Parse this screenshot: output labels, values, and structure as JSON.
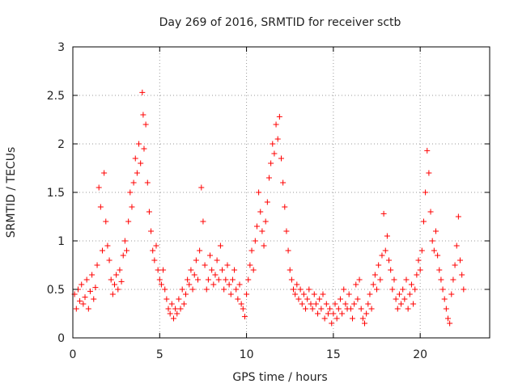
{
  "chart_data": {
    "type": "scatter",
    "title": "Day 269 of 2016, SRMTID for receiver sctb",
    "xlabel": "GPS time / hours",
    "ylabel": "SRMTID / TECUs",
    "xlim": [
      0,
      24
    ],
    "ylim": [
      0,
      3
    ],
    "xticks": [
      0,
      5,
      10,
      15,
      20
    ],
    "xtick_labels": [
      "0",
      "5",
      "10",
      "15",
      "20"
    ],
    "yticks": [
      0,
      0.5,
      1,
      1.5,
      2,
      2.5,
      3
    ],
    "ytick_labels": [
      "0",
      "0.5",
      "1",
      "1.5",
      "2",
      "2.5",
      "3"
    ],
    "grid": true,
    "marker": "+",
    "series": [
      {
        "name": "SRMTID",
        "color": "#ff0000",
        "points": [
          [
            0.1,
            0.45
          ],
          [
            0.2,
            0.3
          ],
          [
            0.3,
            0.5
          ],
          [
            0.4,
            0.38
          ],
          [
            0.5,
            0.55
          ],
          [
            0.6,
            0.35
          ],
          [
            0.7,
            0.42
          ],
          [
            0.8,
            0.6
          ],
          [
            0.9,
            0.3
          ],
          [
            1.0,
            0.48
          ],
          [
            1.1,
            0.65
          ],
          [
            1.2,
            0.4
          ],
          [
            1.3,
            0.52
          ],
          [
            1.4,
            0.75
          ],
          [
            1.5,
            1.55
          ],
          [
            1.6,
            1.35
          ],
          [
            1.7,
            0.9
          ],
          [
            1.8,
            1.7
          ],
          [
            1.9,
            1.2
          ],
          [
            2.0,
            0.95
          ],
          [
            2.1,
            0.8
          ],
          [
            2.2,
            0.6
          ],
          [
            2.3,
            0.45
          ],
          [
            2.4,
            0.55
          ],
          [
            2.5,
            0.65
          ],
          [
            2.6,
            0.5
          ],
          [
            2.7,
            0.7
          ],
          [
            2.8,
            0.58
          ],
          [
            2.9,
            0.85
          ],
          [
            3.0,
            1.0
          ],
          [
            3.1,
            0.9
          ],
          [
            3.2,
            1.2
          ],
          [
            3.3,
            1.5
          ],
          [
            3.4,
            1.35
          ],
          [
            3.5,
            1.6
          ],
          [
            3.6,
            1.85
          ],
          [
            3.7,
            1.7
          ],
          [
            3.8,
            2.0
          ],
          [
            3.9,
            1.8
          ],
          [
            4.0,
            2.53
          ],
          [
            4.05,
            2.3
          ],
          [
            4.1,
            1.95
          ],
          [
            4.2,
            2.2
          ],
          [
            4.3,
            1.6
          ],
          [
            4.4,
            1.3
          ],
          [
            4.5,
            1.1
          ],
          [
            4.6,
            0.9
          ],
          [
            4.7,
            0.8
          ],
          [
            4.8,
            0.95
          ],
          [
            4.9,
            0.7
          ],
          [
            5.0,
            0.6
          ],
          [
            5.1,
            0.55
          ],
          [
            5.2,
            0.7
          ],
          [
            5.3,
            0.5
          ],
          [
            5.4,
            0.4
          ],
          [
            5.5,
            0.3
          ],
          [
            5.6,
            0.25
          ],
          [
            5.7,
            0.35
          ],
          [
            5.8,
            0.2
          ],
          [
            5.9,
            0.3
          ],
          [
            6.0,
            0.25
          ],
          [
            6.1,
            0.4
          ],
          [
            6.2,
            0.3
          ],
          [
            6.3,
            0.5
          ],
          [
            6.4,
            0.35
          ],
          [
            6.5,
            0.45
          ],
          [
            6.6,
            0.6
          ],
          [
            6.7,
            0.55
          ],
          [
            6.8,
            0.7
          ],
          [
            6.9,
            0.5
          ],
          [
            7.0,
            0.65
          ],
          [
            7.1,
            0.8
          ],
          [
            7.2,
            0.6
          ],
          [
            7.3,
            0.9
          ],
          [
            7.4,
            1.55
          ],
          [
            7.5,
            1.2
          ],
          [
            7.6,
            0.75
          ],
          [
            7.7,
            0.5
          ],
          [
            7.8,
            0.6
          ],
          [
            7.9,
            0.85
          ],
          [
            8.0,
            0.7
          ],
          [
            8.1,
            0.55
          ],
          [
            8.2,
            0.65
          ],
          [
            8.3,
            0.8
          ],
          [
            8.4,
            0.6
          ],
          [
            8.5,
            0.95
          ],
          [
            8.6,
            0.7
          ],
          [
            8.7,
            0.5
          ],
          [
            8.8,
            0.6
          ],
          [
            8.9,
            0.75
          ],
          [
            9.0,
            0.55
          ],
          [
            9.1,
            0.45
          ],
          [
            9.2,
            0.6
          ],
          [
            9.3,
            0.7
          ],
          [
            9.4,
            0.5
          ],
          [
            9.5,
            0.4
          ],
          [
            9.6,
            0.55
          ],
          [
            9.7,
            0.35
          ],
          [
            9.8,
            0.3
          ],
          [
            9.9,
            0.22
          ],
          [
            10.0,
            0.45
          ],
          [
            10.1,
            0.6
          ],
          [
            10.2,
            0.75
          ],
          [
            10.3,
            0.9
          ],
          [
            10.4,
            0.7
          ],
          [
            10.5,
            1.0
          ],
          [
            10.6,
            1.15
          ],
          [
            10.7,
            1.5
          ],
          [
            10.8,
            1.3
          ],
          [
            10.9,
            1.1
          ],
          [
            11.0,
            0.95
          ],
          [
            11.1,
            1.2
          ],
          [
            11.2,
            1.4
          ],
          [
            11.3,
            1.65
          ],
          [
            11.4,
            1.8
          ],
          [
            11.5,
            2.0
          ],
          [
            11.6,
            1.9
          ],
          [
            11.7,
            2.2
          ],
          [
            11.8,
            2.05
          ],
          [
            11.9,
            2.28
          ],
          [
            12.0,
            1.85
          ],
          [
            12.1,
            1.6
          ],
          [
            12.2,
            1.35
          ],
          [
            12.3,
            1.1
          ],
          [
            12.4,
            0.9
          ],
          [
            12.5,
            0.7
          ],
          [
            12.6,
            0.6
          ],
          [
            12.7,
            0.5
          ],
          [
            12.8,
            0.45
          ],
          [
            12.9,
            0.55
          ],
          [
            13.0,
            0.4
          ],
          [
            13.1,
            0.5
          ],
          [
            13.2,
            0.35
          ],
          [
            13.3,
            0.45
          ],
          [
            13.4,
            0.3
          ],
          [
            13.5,
            0.4
          ],
          [
            13.6,
            0.5
          ],
          [
            13.7,
            0.35
          ],
          [
            13.8,
            0.3
          ],
          [
            13.9,
            0.45
          ],
          [
            14.0,
            0.35
          ],
          [
            14.1,
            0.25
          ],
          [
            14.2,
            0.4
          ],
          [
            14.3,
            0.3
          ],
          [
            14.4,
            0.45
          ],
          [
            14.5,
            0.2
          ],
          [
            14.6,
            0.35
          ],
          [
            14.7,
            0.25
          ],
          [
            14.8,
            0.3
          ],
          [
            14.9,
            0.15
          ],
          [
            15.0,
            0.25
          ],
          [
            15.1,
            0.35
          ],
          [
            15.2,
            0.2
          ],
          [
            15.3,
            0.3
          ],
          [
            15.4,
            0.4
          ],
          [
            15.5,
            0.25
          ],
          [
            15.6,
            0.5
          ],
          [
            15.7,
            0.35
          ],
          [
            15.8,
            0.3
          ],
          [
            15.9,
            0.45
          ],
          [
            16.0,
            0.3
          ],
          [
            16.1,
            0.2
          ],
          [
            16.2,
            0.35
          ],
          [
            16.3,
            0.55
          ],
          [
            16.4,
            0.4
          ],
          [
            16.5,
            0.6
          ],
          [
            16.6,
            0.3
          ],
          [
            16.7,
            0.2
          ],
          [
            16.8,
            0.15
          ],
          [
            16.9,
            0.25
          ],
          [
            17.0,
            0.35
          ],
          [
            17.1,
            0.45
          ],
          [
            17.2,
            0.3
          ],
          [
            17.3,
            0.55
          ],
          [
            17.4,
            0.65
          ],
          [
            17.5,
            0.5
          ],
          [
            17.6,
            0.75
          ],
          [
            17.7,
            0.6
          ],
          [
            17.8,
            0.85
          ],
          [
            17.9,
            1.28
          ],
          [
            18.0,
            0.9
          ],
          [
            18.1,
            1.05
          ],
          [
            18.2,
            0.8
          ],
          [
            18.3,
            0.7
          ],
          [
            18.4,
            0.5
          ],
          [
            18.5,
            0.6
          ],
          [
            18.6,
            0.4
          ],
          [
            18.7,
            0.3
          ],
          [
            18.8,
            0.45
          ],
          [
            18.9,
            0.35
          ],
          [
            19.0,
            0.5
          ],
          [
            19.1,
            0.4
          ],
          [
            19.2,
            0.6
          ],
          [
            19.3,
            0.3
          ],
          [
            19.4,
            0.45
          ],
          [
            19.5,
            0.55
          ],
          [
            19.6,
            0.35
          ],
          [
            19.7,
            0.5
          ],
          [
            19.8,
            0.65
          ],
          [
            19.9,
            0.8
          ],
          [
            20.0,
            0.7
          ],
          [
            20.1,
            0.9
          ],
          [
            20.2,
            1.2
          ],
          [
            20.3,
            1.5
          ],
          [
            20.4,
            1.93
          ],
          [
            20.5,
            1.7
          ],
          [
            20.6,
            1.3
          ],
          [
            20.7,
            1.0
          ],
          [
            20.8,
            0.9
          ],
          [
            20.9,
            1.1
          ],
          [
            21.0,
            0.85
          ],
          [
            21.1,
            0.7
          ],
          [
            21.2,
            0.6
          ],
          [
            21.3,
            0.5
          ],
          [
            21.4,
            0.4
          ],
          [
            21.5,
            0.3
          ],
          [
            21.6,
            0.2
          ],
          [
            21.7,
            0.15
          ],
          [
            21.8,
            0.45
          ],
          [
            21.9,
            0.6
          ],
          [
            22.0,
            0.75
          ],
          [
            22.1,
            0.95
          ],
          [
            22.2,
            1.25
          ],
          [
            22.3,
            0.8
          ],
          [
            22.4,
            0.65
          ],
          [
            22.5,
            0.5
          ]
        ]
      }
    ]
  }
}
